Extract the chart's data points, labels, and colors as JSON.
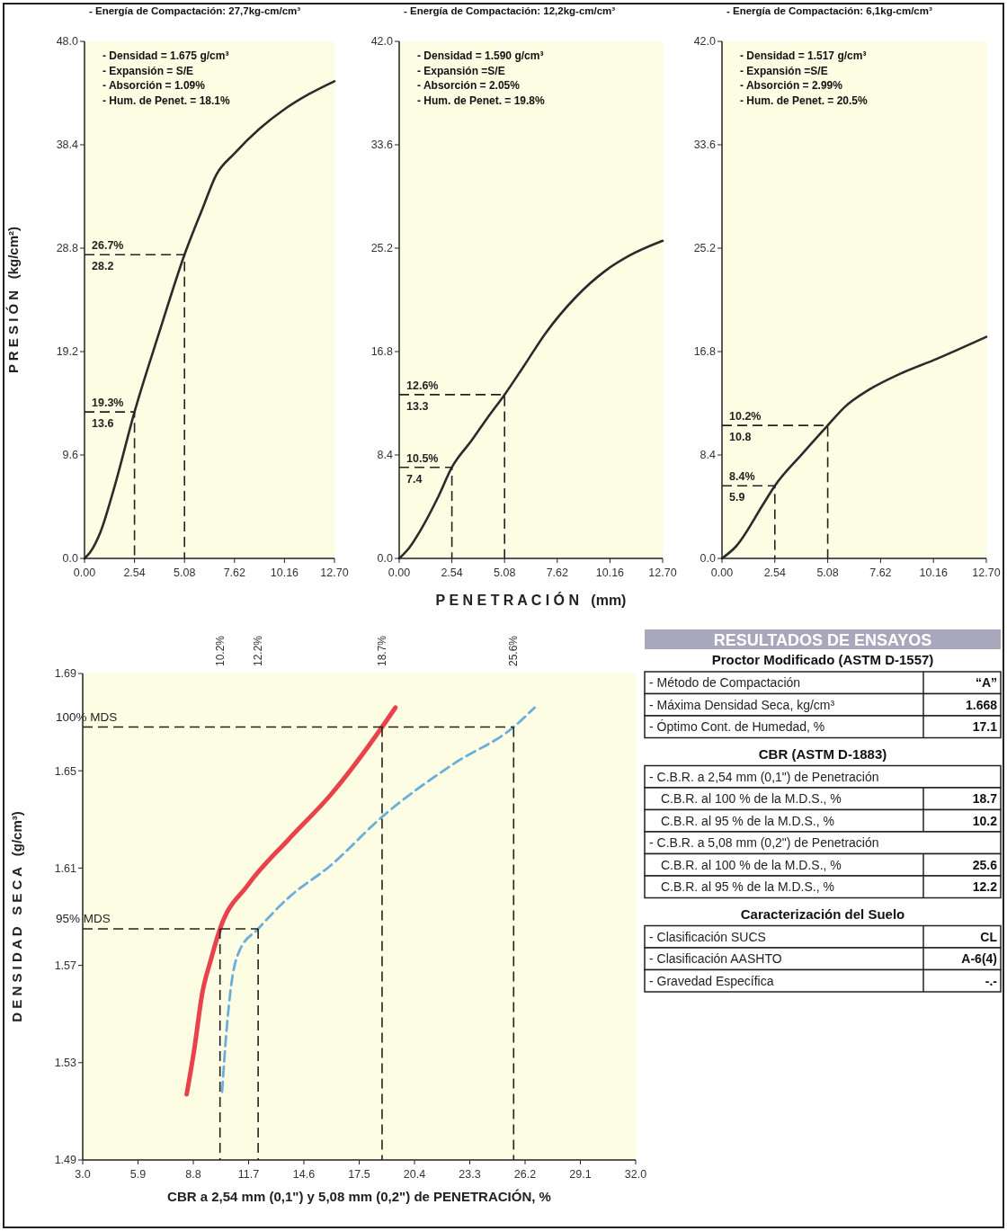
{
  "chart_data": [
    {
      "type": "line",
      "title": "- Energía de Compactación: 27,7kg-cm/cm³",
      "ylabel": "P R E S I Ó N   (kg/cm²)",
      "series": [
        {
          "color": "#2b2b2b",
          "line_style": "solid",
          "x": [
            0,
            0.3,
            0.8,
            1.5,
            2.54,
            3.8,
            5.08,
            6.0,
            6.69,
            7.62,
            8.9,
            10.16,
            11.4,
            12.7
          ],
          "values": [
            0,
            0.6,
            2.4,
            6.5,
            13.6,
            21,
            28.2,
            32.5,
            35.6,
            37.6,
            39.9,
            41.7,
            43.1,
            44.3
          ]
        },
        {
          "color": "#222222",
          "line_style": "dashed",
          "x": [
            0,
            5.08,
            5.08
          ],
          "values": [
            28.2,
            28.2,
            0
          ]
        },
        {
          "color": "#222222",
          "line_style": "dashed",
          "x": [
            0,
            2.54,
            2.54
          ],
          "values": [
            13.6,
            13.6,
            0
          ]
        }
      ],
      "xlim": [
        0,
        12.7
      ],
      "ylim": [
        0,
        48
      ],
      "xticks": [
        {
          "value": 0,
          "label": "0.00"
        },
        2.54,
        5.08,
        7.62,
        10.16,
        {
          "value": 12.7,
          "label": "12.70"
        }
      ],
      "yticks": [
        {
          "value": 0,
          "label": "0.0"
        },
        9.6,
        19.2,
        28.8,
        38.4,
        {
          "value": 48,
          "label": "48.0"
        }
      ],
      "annotations": [
        "- Densidad = 1.675 g/cm³",
        "- Expansión = S/E",
        "- Absorción = 1.09%",
        "- Hum. de Penet. = 18.1%",
        {
          "text": "26.7%",
          "y": 28.2
        },
        {
          "text": "28.2",
          "y": 28.2
        },
        {
          "text": "19.3%",
          "y": 13.6
        },
        {
          "text": "13.6",
          "y": 13.6
        }
      ]
    },
    {
      "type": "line",
      "title": "- Energía de Compactación: 12,2kg-cm/cm³",
      "xlabel": "P E N E T R A C I Ó N   (mm)",
      "series": [
        {
          "color": "#2b2b2b",
          "line_style": "solid",
          "x": [
            0,
            0.5,
            1.0,
            1.88,
            2.54,
            3.5,
            4.33,
            5.08,
            6.0,
            7.06,
            8.5,
            9.97,
            11.1,
            12.7
          ],
          "values": [
            0,
            0.9,
            2.2,
            5.0,
            7.4,
            9.6,
            11.6,
            13.3,
            15.6,
            18.3,
            21.2,
            23.4,
            24.6,
            25.8
          ]
        },
        {
          "color": "#222222",
          "line_style": "dashed",
          "x": [
            0,
            5.08,
            5.08
          ],
          "values": [
            13.3,
            13.3,
            0
          ]
        },
        {
          "color": "#222222",
          "line_style": "dashed",
          "x": [
            0,
            2.54,
            2.54
          ],
          "values": [
            7.4,
            7.4,
            0
          ]
        }
      ],
      "xlim": [
        0,
        12.7
      ],
      "ylim": [
        0,
        42
      ],
      "xticks": [
        {
          "value": 0,
          "label": "0.00"
        },
        2.54,
        5.08,
        7.62,
        10.16,
        {
          "value": 12.7,
          "label": "12.70"
        }
      ],
      "yticks": [
        {
          "value": 0,
          "label": "0.0"
        },
        8.4,
        16.8,
        25.2,
        33.6,
        {
          "value": 42,
          "label": "42.0"
        }
      ],
      "annotations": [
        "- Densidad = 1.590 g/cm³",
        "- Expansión =S/E",
        "- Absorción = 2.05%",
        "- Hum. de Penet. = 19.8%",
        {
          "text": "12.6%",
          "y": 13.3
        },
        {
          "text": "13.3",
          "y": 13.3
        },
        {
          "text": "10.5%",
          "y": 7.4
        },
        {
          "text": "7.4",
          "y": 7.4
        }
      ]
    },
    {
      "type": "line",
      "title": "- Energía de Compactación: 6,1kg-cm/cm³",
      "series": [
        {
          "color": "#2b2b2b",
          "line_style": "solid",
          "x": [
            0,
            0.66,
            1.98,
            2.54,
            3.86,
            5.08,
            5.9,
            7.06,
            8.56,
            10.16,
            12.7
          ],
          "values": [
            0,
            0.95,
            4.4,
            5.9,
            8.5,
            10.8,
            12.3,
            13.7,
            15.0,
            16.1,
            18.0
          ]
        },
        {
          "color": "#222222",
          "line_style": "dashed",
          "x": [
            0,
            5.08,
            5.08
          ],
          "values": [
            10.8,
            10.8,
            0
          ]
        },
        {
          "color": "#222222",
          "line_style": "dashed",
          "x": [
            0,
            2.54,
            2.54
          ],
          "values": [
            5.9,
            5.9,
            0
          ]
        }
      ],
      "xlim": [
        0,
        12.7
      ],
      "ylim": [
        0,
        42
      ],
      "xticks": [
        {
          "value": 0,
          "label": "0.00"
        },
        2.54,
        5.08,
        7.62,
        10.16,
        {
          "value": 12.7,
          "label": "12.70"
        }
      ],
      "yticks": [
        {
          "value": 0,
          "label": "0.0"
        },
        8.4,
        16.8,
        25.2,
        33.6,
        {
          "value": 42,
          "label": "42.0"
        }
      ],
      "annotations": [
        "- Densidad = 1.517 g/cm³",
        "- Expansión =S/E",
        "- Absorción = 2.99%",
        "- Hum. de Penet. = 20.5%",
        {
          "text": "10.2%",
          "y": 10.8
        },
        {
          "text": "10.8",
          "y": 10.8
        },
        {
          "text": "8.4%",
          "y": 5.9
        },
        {
          "text": "5.9",
          "y": 5.9
        }
      ]
    },
    {
      "type": "line",
      "xlabel": "CBR a 2,54 mm (0,1\") y 5,08 mm (0,2\") de PENETRACIÓN, %",
      "ylabel": "D E N S I D A D   S E C A   (g/cm³)",
      "series": [
        {
          "color": "#e8434a",
          "line_style": "solid",
          "x": [
            8.45,
            8.84,
            9.28,
            9.71,
            10.2,
            11.66,
            13.82,
            15.99,
            18.7,
            19.4
          ],
          "values": [
            1.517,
            1.535,
            1.559,
            1.572,
            1.585,
            1.603,
            1.622,
            1.64,
            1.668,
            1.676
          ]
        },
        {
          "color": "#6aaedc",
          "line_style": "dashed",
          "x": [
            10.31,
            10.53,
            10.79,
            11.22,
            12.2,
            13.82,
            15.99,
            18.69,
            22.48,
            25.6,
            26.7
          ],
          "values": [
            1.518,
            1.542,
            1.562,
            1.576,
            1.585,
            1.598,
            1.611,
            1.631,
            1.653,
            1.668,
            1.676
          ]
        },
        {
          "name": "100% MDS",
          "color": "#222222",
          "line_style": "dashed",
          "x": [
            3,
            25.6
          ],
          "values": [
            1.668,
            1.668
          ]
        },
        {
          "name": "95% MDS",
          "color": "#222222",
          "line_style": "dashed",
          "x": [
            3,
            12.2
          ],
          "values": [
            1.585,
            1.585
          ]
        },
        {
          "color": "#222222",
          "line_style": "dashed",
          "x": [
            10.2,
            10.2
          ],
          "values": [
            1.585,
            1.49
          ]
        },
        {
          "color": "#222222",
          "line_style": "dashed",
          "x": [
            12.2,
            12.2
          ],
          "values": [
            1.585,
            1.49
          ]
        },
        {
          "color": "#222222",
          "line_style": "dashed",
          "x": [
            18.7,
            18.7
          ],
          "values": [
            1.668,
            1.49
          ]
        },
        {
          "color": "#222222",
          "line_style": "dashed",
          "x": [
            25.6,
            25.6
          ],
          "values": [
            1.668,
            1.49
          ]
        }
      ],
      "annotations": [
        "10.2%",
        "12.2%",
        "18.7%",
        "25.6%"
      ],
      "xlim": [
        3,
        32
      ],
      "ylim": [
        1.49,
        1.69
      ],
      "xticks": [
        {
          "value": 3,
          "label": "3.0"
        },
        5.9,
        8.8,
        11.7,
        14.6,
        17.5,
        20.4,
        23.3,
        26.2,
        29.1,
        {
          "value": 32,
          "label": "32.0"
        }
      ],
      "yticks": [
        1.49,
        1.53,
        1.57,
        1.61,
        1.65,
        1.69
      ]
    },
    {
      "type": "other",
      "title": "RESULTADOS DE ENSAYOS",
      "annotations": [
        "Proctor Modificado (ASTM D-1557)",
        "- Método de Compactación",
        "“A”",
        "- Máxima Densidad Seca, kg/cm³",
        "1.668",
        "- Óptimo Cont. de Humedad, %",
        "17.1",
        "CBR (ASTM D-1883)",
        "- C.B.R. a 2,54 mm (0,1\") de Penetración",
        "C.B.R. al 100 % de la M.D.S., %",
        "18.7",
        "C.B.R. al 95 % de la M.D.S., %",
        "10.2",
        "- C.B.R. a 5,08 mm (0,2\") de Penetración",
        "C.B.R. al 100 % de la M.D.S., %",
        "25.6",
        "C.B.R. al 95 % de la M.D.S., %",
        "12.2",
        "Caracterización del Suelo",
        "- Clasificación SUCS",
        "CL",
        "- Clasificación AASHTO",
        "A-6(4)",
        "- Gravedad Específica",
        "-.-"
      ]
    }
  ]
}
